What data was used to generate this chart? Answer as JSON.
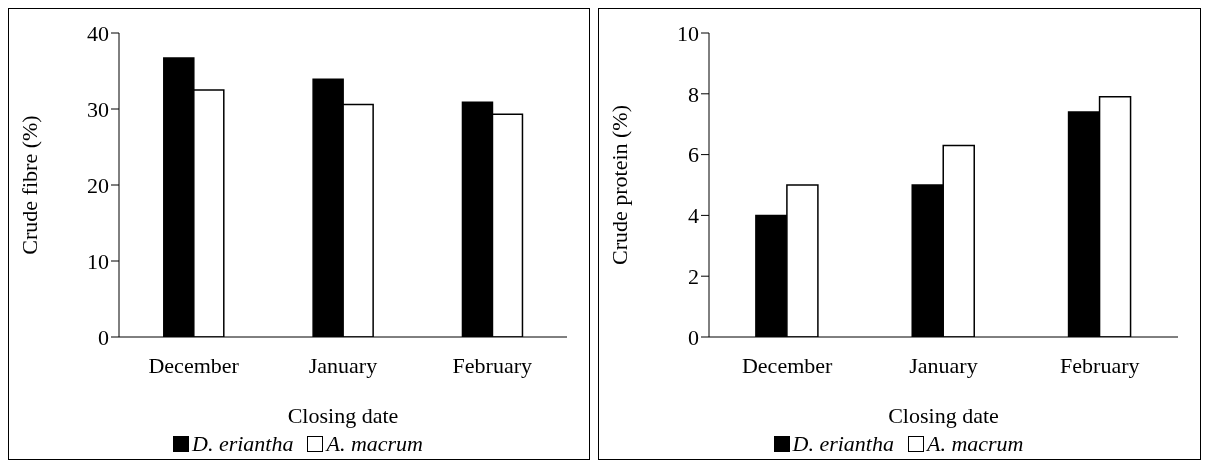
{
  "chart_data": [
    {
      "type": "bar",
      "xlabel": "Closing date",
      "ylabel": "Crude fibre (%)",
      "categories": [
        "December",
        "January",
        "February"
      ],
      "series": [
        {
          "name": "D. eriantha",
          "color": "#000000",
          "values": [
            36.7,
            33.9,
            30.9
          ]
        },
        {
          "name": "A. macrum",
          "color": "#ffffff",
          "values": [
            32.5,
            30.6,
            29.3
          ]
        }
      ],
      "ylim": [
        0,
        40
      ],
      "yticks": [
        0,
        10,
        20,
        30,
        40
      ],
      "grid": false,
      "legend": "bottom"
    },
    {
      "type": "bar",
      "xlabel": "Closing date",
      "ylabel": "Crude protein (%)",
      "categories": [
        "December",
        "January",
        "February"
      ],
      "series": [
        {
          "name": "D. eriantha",
          "color": "#000000",
          "values": [
            4.0,
            5.0,
            7.4
          ]
        },
        {
          "name": "A. macrum",
          "color": "#ffffff",
          "values": [
            5.0,
            6.3,
            7.9
          ]
        }
      ],
      "ylim": [
        0,
        10
      ],
      "yticks": [
        0,
        2,
        4,
        6,
        8,
        10
      ],
      "grid": false,
      "legend": "bottom"
    }
  ]
}
